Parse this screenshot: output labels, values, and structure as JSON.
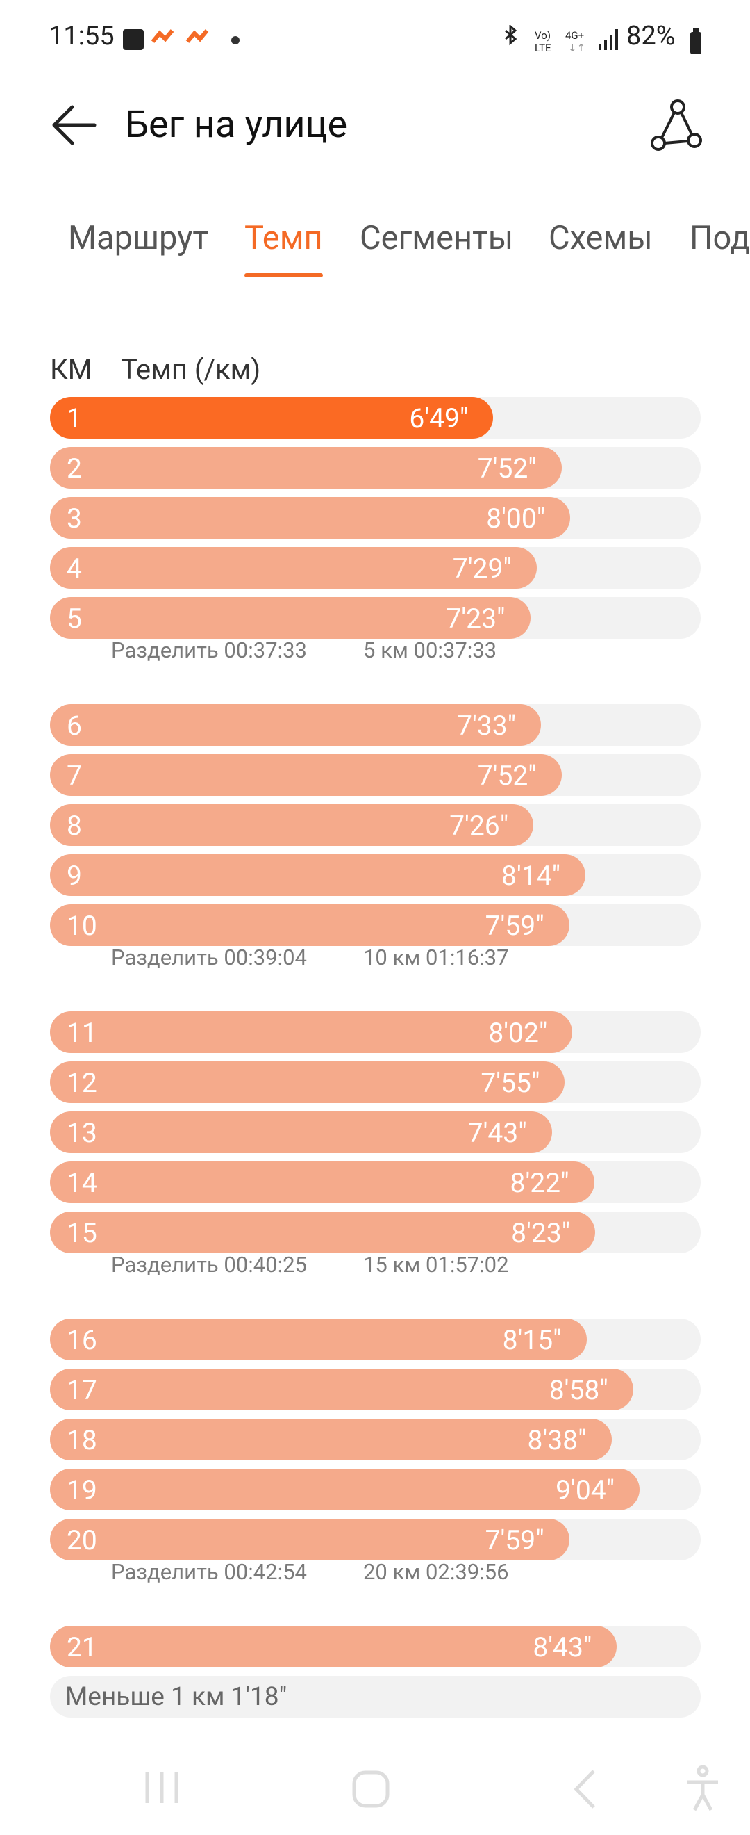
{
  "status": {
    "time": "11:55",
    "battery": "82%"
  },
  "header": {
    "title": "Бег на улице"
  },
  "tabs": [
    "Маршрут",
    "Темп",
    "Сегменты",
    "Схемы",
    "Под"
  ],
  "table": {
    "columns": [
      "КМ",
      "Темп (/км)"
    ],
    "groups": [
      {
        "rows": [
          [
            "1",
            "6'49\""
          ],
          [
            "2",
            "7'52\""
          ],
          [
            "3",
            "8'00\""
          ],
          [
            "4",
            "7'29\""
          ],
          [
            "5",
            "7'23\""
          ]
        ],
        "split": [
          "Разделить 00:37:33",
          "5 км 00:37:33"
        ]
      },
      {
        "rows": [
          [
            "6",
            "7'33\""
          ],
          [
            "7",
            "7'52\""
          ],
          [
            "8",
            "7'26\""
          ],
          [
            "9",
            "8'14\""
          ],
          [
            "10",
            "7'59\""
          ]
        ],
        "split": [
          "Разделить 00:39:04",
          "10 км 01:16:37"
        ]
      },
      {
        "rows": [
          [
            "11",
            "8'02\""
          ],
          [
            "12",
            "7'55\""
          ],
          [
            "13",
            "7'43\""
          ],
          [
            "14",
            "8'22\""
          ],
          [
            "15",
            "8'23\""
          ]
        ],
        "split": [
          "Разделить 00:40:25",
          "15 км 01:57:02"
        ]
      },
      {
        "rows": [
          [
            "16",
            "8'15\""
          ],
          [
            "17",
            "8'58\""
          ],
          [
            "18",
            "8'38\""
          ],
          [
            "19",
            "9'04\""
          ],
          [
            "20",
            "7'59\""
          ]
        ],
        "split": [
          "Разделить 00:42:54",
          "20 км 02:39:56"
        ]
      },
      {
        "rows": [
          [
            "21",
            "8'43\""
          ]
        ]
      }
    ],
    "remainder": "Меньше 1 км 1'18\""
  }
}
